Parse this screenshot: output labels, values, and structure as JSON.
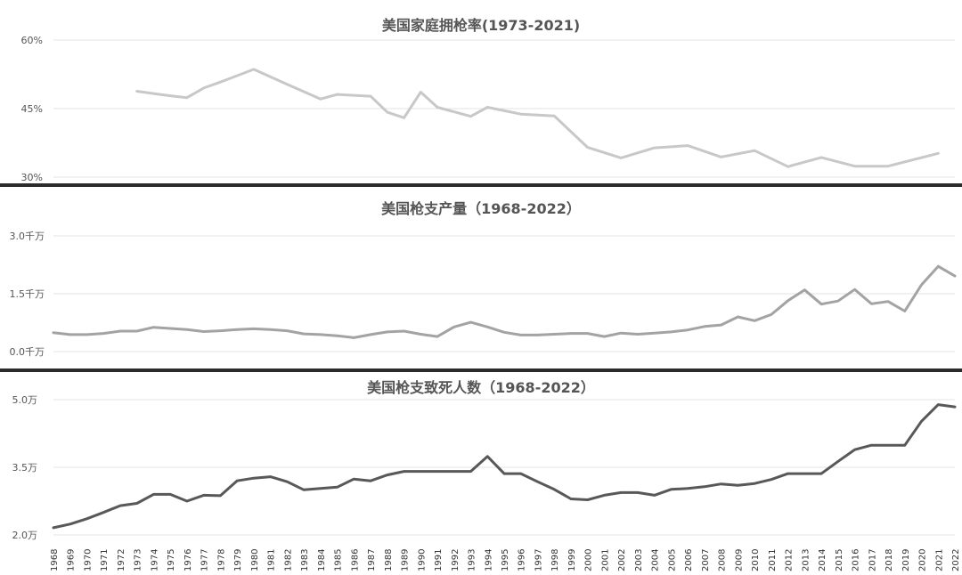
{
  "charts": {
    "chart_data": [
      {
        "type": "line",
        "title": "美国家庭拥枪率(1973-2021)",
        "xlabel": "",
        "ylabel": "",
        "ylim": [
          30,
          60
        ],
        "ytick_labels": [
          "60%",
          "45%",
          "30%"
        ],
        "ytick_values": [
          60,
          45,
          30
        ],
        "grid": true,
        "color": "#c8c8c8",
        "series": [
          {
            "x": [
              1973,
              1974,
              1975,
              1976,
              1977,
              1978,
              1980,
              1982,
              1984,
              1985,
              1987,
              1988,
              1989,
              1990,
              1991,
              1993,
              1994,
              1996,
              1998,
              2000,
              2002,
              2004,
              2006,
              2008,
              2010,
              2012,
              2014,
              2016,
              2018,
              2021
            ],
            "values": [
              48.8,
              48.3,
              47.8,
              47.4,
              49.5,
              50.8,
              53.6,
              50.3,
              47.1,
              48.1,
              47.7,
              44.2,
              43.0,
              48.6,
              45.3,
              43.3,
              45.3,
              43.8,
              43.4,
              36.5,
              34.2,
              36.4,
              36.9,
              34.4,
              35.8,
              32.3,
              34.3,
              32.4,
              32.4,
              35.2
            ]
          }
        ]
      },
      {
        "type": "line",
        "title": "美国枪支产量（1968-2022）",
        "xlabel": "",
        "ylabel": "",
        "ylim": [
          0,
          30000000
        ],
        "ytick_labels": [
          "3.0千万",
          "1.5千万",
          "0.0千万"
        ],
        "ytick_values": [
          30000000,
          15000000,
          0
        ],
        "grid": true,
        "color": "#a3a3a3",
        "series": [
          {
            "x": [
              1968,
              1969,
              1970,
              1971,
              1972,
              1973,
              1974,
              1975,
              1976,
              1977,
              1978,
              1979,
              1980,
              1981,
              1982,
              1983,
              1984,
              1985,
              1986,
              1987,
              1988,
              1989,
              1990,
              1991,
              1992,
              1993,
              1994,
              1995,
              1996,
              1997,
              1998,
              1999,
              2000,
              2001,
              2002,
              2003,
              2004,
              2005,
              2006,
              2007,
              2008,
              2009,
              2010,
              2011,
              2012,
              2013,
              2014,
              2015,
              2016,
              2017,
              2018,
              2019,
              2020,
              2021,
              2022
            ],
            "values": [
              4900000,
              4400000,
              4400000,
              4700000,
              5300000,
              5300000,
              6300000,
              6000000,
              5700000,
              5200000,
              5400000,
              5700000,
              5900000,
              5700000,
              5400000,
              4600000,
              4400000,
              4100000,
              3600000,
              4400000,
              5100000,
              5300000,
              4500000,
              3900000,
              6400000,
              7600000,
              6400000,
              5000000,
              4300000,
              4300000,
              4500000,
              4700000,
              4700000,
              3900000,
              4800000,
              4500000,
              4800000,
              5100000,
              5600000,
              6500000,
              6900000,
              9000000,
              8000000,
              9600000,
              13200000,
              16000000,
              12300000,
              13100000,
              16100000,
              12400000,
              13000000,
              10500000,
              17300000,
              22100000,
              19600000
            ]
          }
        ]
      },
      {
        "type": "line",
        "title": "美国枪支致死人数（1968-2022）",
        "xlabel": "",
        "ylabel": "",
        "ylim": [
          20000,
          50000
        ],
        "ytick_labels": [
          "5.0万",
          "3.5万",
          "2.0万"
        ],
        "ytick_values": [
          50000,
          35000,
          20000
        ],
        "grid": true,
        "color": "#585858",
        "categories": [
          "1968",
          "1969",
          "1970",
          "1971",
          "1972",
          "1973",
          "1974",
          "1975",
          "1976",
          "1977",
          "1978",
          "1979",
          "1980",
          "1981",
          "1982",
          "1983",
          "1984",
          "1985",
          "1986",
          "1987",
          "1988",
          "1989",
          "1990",
          "1991",
          "1992",
          "1993",
          "1994",
          "1995",
          "1996",
          "1997",
          "1998",
          "1999",
          "2000",
          "2001",
          "2002",
          "2003",
          "2004",
          "2005",
          "2006",
          "2007",
          "2008",
          "2009",
          "2010",
          "2011",
          "2012",
          "2013",
          "2014",
          "2015",
          "2016",
          "2017",
          "2018",
          "2019",
          "2020",
          "2021",
          "2022"
        ],
        "series": [
          {
            "x": [
              1968,
              1969,
              1970,
              1971,
              1972,
              1973,
              1974,
              1975,
              1976,
              1977,
              1978,
              1979,
              1980,
              1981,
              1982,
              1983,
              1984,
              1985,
              1986,
              1987,
              1988,
              1989,
              1990,
              1991,
              1992,
              1993,
              1994,
              1995,
              1996,
              1997,
              1998,
              1999,
              2000,
              2001,
              2002,
              2003,
              2004,
              2005,
              2006,
              2007,
              2008,
              2009,
              2010,
              2011,
              2012,
              2013,
              2014,
              2015,
              2016,
              2017,
              2018,
              2019,
              2020,
              2021,
              2022
            ],
            "values": [
              21600,
              22400,
              23600,
              25000,
              26500,
              27000,
              29000,
              29000,
              27500,
              28800,
              28700,
              32000,
              32600,
              32900,
              31800,
              30000,
              30300,
              30600,
              32400,
              32000,
              33300,
              34100,
              34100,
              34100,
              34100,
              34100,
              37400,
              33600,
              33600,
              31800,
              30100,
              28000,
              27800,
              28800,
              29400,
              29400,
              28800,
              30100,
              30300,
              30700,
              31300,
              31000,
              31400,
              32300,
              33600,
              33600,
              33600,
              36300,
              38900,
              39900,
              39900,
              39900,
              45200,
              48900,
              48400
            ]
          }
        ]
      }
    ]
  }
}
